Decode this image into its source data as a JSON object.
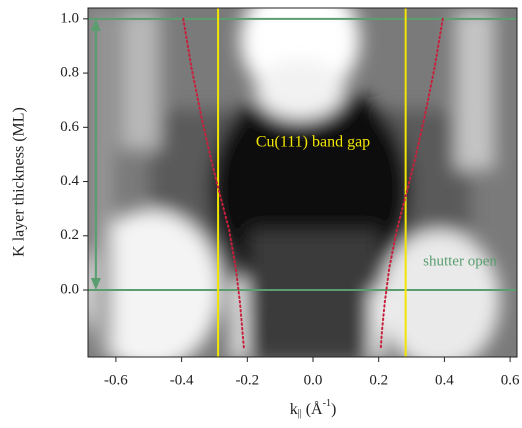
{
  "chart_data": {
    "type": "heatmap",
    "ylabel": "K layer thickness (ML)",
    "xlabel": {
      "base": "k",
      "sub": "||",
      "open": " (Å",
      "sup": "-1",
      "close": ")"
    },
    "xlim": [
      -0.685,
      0.621
    ],
    "ylim": [
      -0.247,
      1.04
    ],
    "xticks": [
      -0.6,
      -0.4,
      -0.2,
      {
        "value": 0,
        "label": "0.0"
      },
      0.2,
      0.4,
      0.6
    ],
    "yticks": [
      {
        "value": 0,
        "label": "0.0"
      },
      0.2,
      0.4,
      0.6,
      0.8,
      {
        "value": 1,
        "label": "1.0"
      }
    ],
    "vlines": {
      "color": "#f2e600",
      "values": [
        -0.289,
        0.282
      ]
    },
    "hlines": {
      "color": "#5a9e6f",
      "values": [
        0,
        1
      ]
    },
    "arrow": {
      "color": "#5a9e6f",
      "x": -0.661,
      "y": [
        0,
        1
      ]
    },
    "series": [
      {
        "color": "#c8203c",
        "x": [
          -0.395,
          -0.37,
          -0.34,
          -0.31,
          -0.285,
          -0.255,
          -0.235,
          -0.222,
          -0.215,
          -0.21
        ],
        "y": [
          1.0,
          0.82,
          0.64,
          0.48,
          0.36,
          0.22,
          0.08,
          -0.05,
          -0.15,
          -0.22
        ]
      },
      {
        "color": "#c8203c",
        "x": [
          0.395,
          0.37,
          0.34,
          0.31,
          0.285,
          0.255,
          0.232,
          0.218,
          0.21,
          0.206
        ],
        "y": [
          1.0,
          0.82,
          0.64,
          0.48,
          0.36,
          0.22,
          0.08,
          -0.05,
          -0.15,
          -0.22
        ]
      }
    ],
    "annotations": {
      "band_gap": "Cu(111) band gap",
      "shutter": "shutter open"
    }
  }
}
